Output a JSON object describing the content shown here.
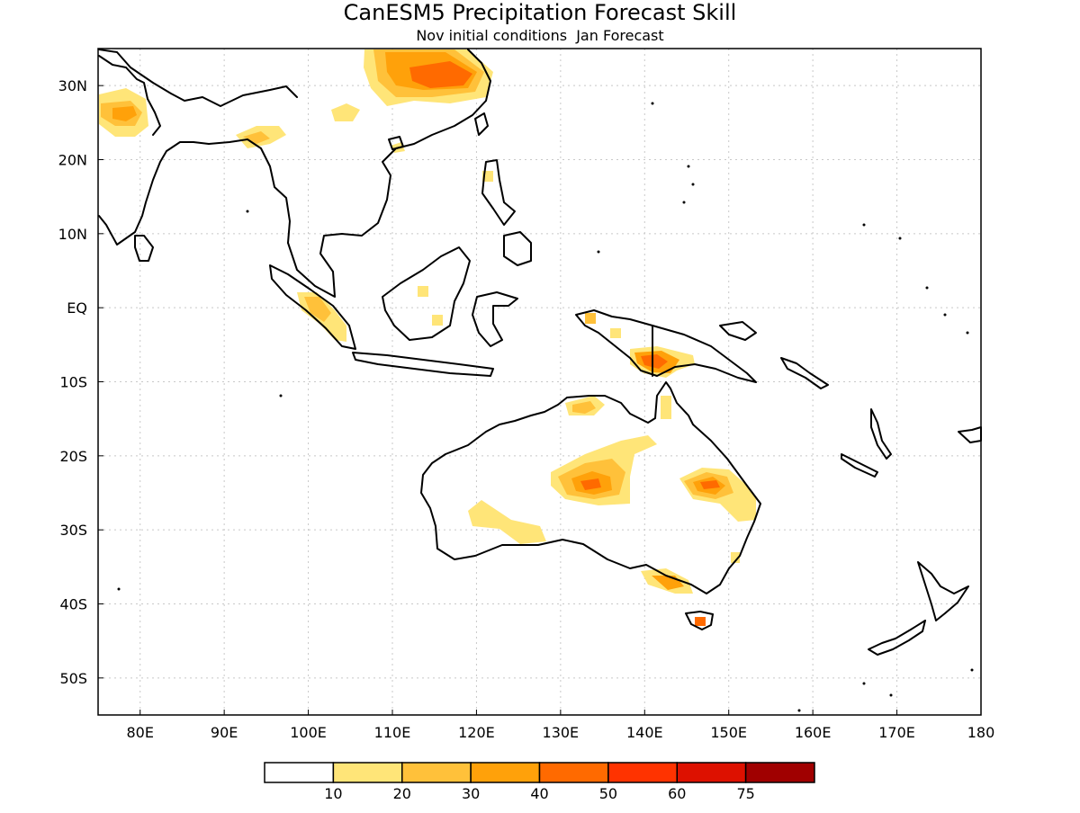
{
  "title": "CanESM5 Precipitation Forecast Skill",
  "subtitle": "Nov initial conditions  Jan Forecast",
  "map": {
    "lon_range": [
      75,
      180
    ],
    "lat_range": [
      -55,
      35
    ],
    "lat_ticks": [
      {
        "value": 30,
        "label": "30N"
      },
      {
        "value": 20,
        "label": "20N"
      },
      {
        "value": 10,
        "label": "10N"
      },
      {
        "value": 0,
        "label": "EQ"
      },
      {
        "value": -10,
        "label": "10S"
      },
      {
        "value": -20,
        "label": "20S"
      },
      {
        "value": -30,
        "label": "30S"
      },
      {
        "value": -40,
        "label": "40S"
      },
      {
        "value": -50,
        "label": "50S"
      }
    ],
    "lon_ticks": [
      {
        "value": 80,
        "label": "80E"
      },
      {
        "value": 90,
        "label": "90E"
      },
      {
        "value": 100,
        "label": "100E"
      },
      {
        "value": 110,
        "label": "110E"
      },
      {
        "value": 120,
        "label": "120E"
      },
      {
        "value": 130,
        "label": "130E"
      },
      {
        "value": 140,
        "label": "140E"
      },
      {
        "value": 150,
        "label": "150E"
      },
      {
        "value": 160,
        "label": "160E"
      },
      {
        "value": 170,
        "label": "170E"
      },
      {
        "value": 180,
        "label": "180"
      }
    ],
    "grid": "dotted"
  },
  "legend": {
    "labels": [
      "10",
      "20",
      "30",
      "40",
      "50",
      "60",
      "75"
    ],
    "colors": [
      "#ffffff",
      "#ffe578",
      "#ffc13a",
      "#ffa10a",
      "#ff6a00",
      "#ff3300",
      "#dd1100",
      "#a00000"
    ]
  }
}
